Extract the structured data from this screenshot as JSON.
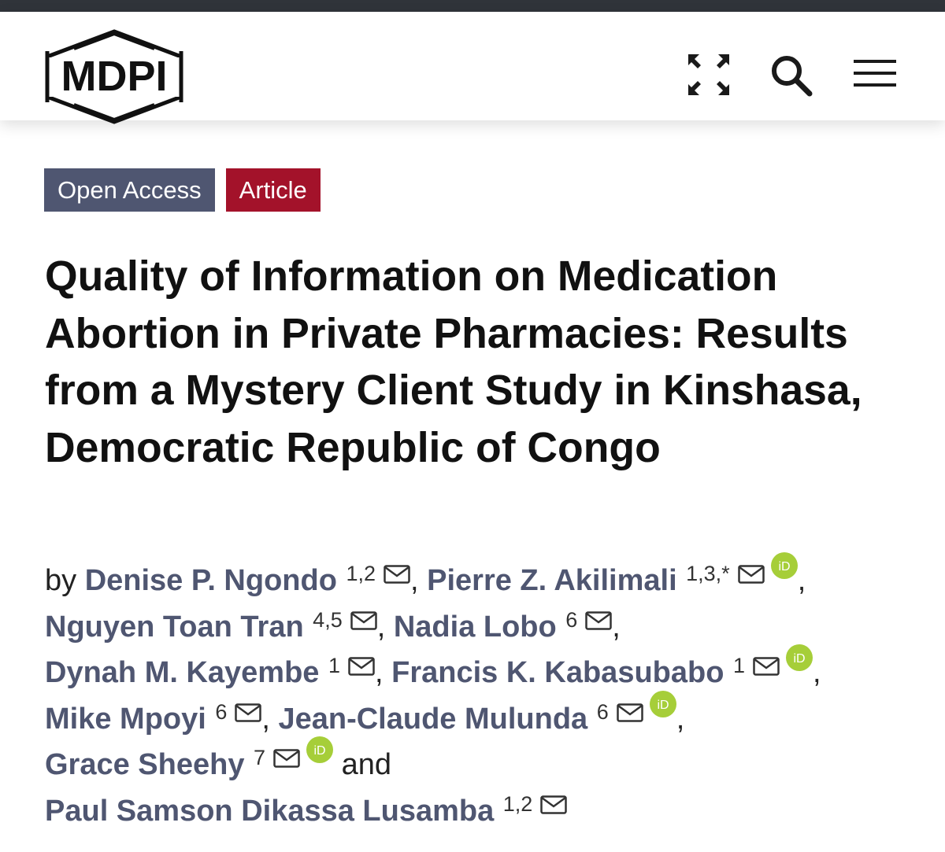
{
  "header": {
    "logo_text": "MDPI",
    "icons": [
      "expand-icon",
      "search-icon",
      "menu-icon"
    ]
  },
  "badges": {
    "open_access": "Open Access",
    "article": "Article"
  },
  "colors": {
    "top_strip": "#30343a",
    "open_access_bg": "#4f5671",
    "article_bg": "#a3122a",
    "author_link": "#4f5671",
    "orcid": "#a6ce39"
  },
  "article": {
    "title": "Quality of Information on Medication Abortion in Private Pharmacies: Results from a Mystery Client Study in Kinshasa, Democratic Republic of Congo",
    "by_label": "by",
    "and_label": "and"
  },
  "authors": [
    {
      "name": "Denise P. Ngondo",
      "affiliations": "1,2",
      "email": true,
      "orcid": false
    },
    {
      "name": "Pierre Z. Akilimali",
      "affiliations": "1,3,*",
      "email": true,
      "orcid": true
    },
    {
      "name": "Nguyen Toan Tran",
      "affiliations": "4,5",
      "email": true,
      "orcid": false
    },
    {
      "name": "Nadia Lobo",
      "affiliations": "6",
      "email": true,
      "orcid": false
    },
    {
      "name": "Dynah M. Kayembe",
      "affiliations": "1",
      "email": true,
      "orcid": false
    },
    {
      "name": "Francis K. Kabasubabo",
      "affiliations": "1",
      "email": true,
      "orcid": true
    },
    {
      "name": "Mike Mpoyi",
      "affiliations": "6",
      "email": true,
      "orcid": false
    },
    {
      "name": "Jean-Claude Mulunda",
      "affiliations": "6",
      "email": true,
      "orcid": true
    },
    {
      "name": "Grace Sheehy",
      "affiliations": "7",
      "email": true,
      "orcid": true
    },
    {
      "name": "Paul Samson Dikassa Lusamba",
      "affiliations": "1,2",
      "email": true,
      "orcid": false
    }
  ]
}
